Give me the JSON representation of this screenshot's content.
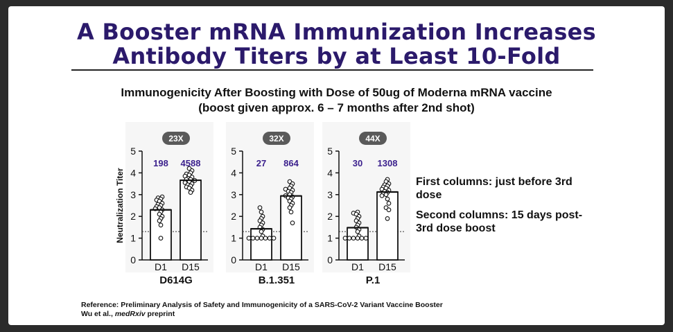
{
  "slide": {
    "title_line1": "A Booster mRNA Immunization Increases",
    "title_line2": "Antibody Titers by at Least 10-Fold",
    "subtitle_line1": "Immunogenicity After Boosting with Dose of 50ug of Moderna mRNA vaccine",
    "subtitle_line2": "(boost given approx. 6 – 7 months after 2nd shot)",
    "notes": [
      "First columns: just before 3rd dose",
      "Second columns: 15 days post-3rd dose boost"
    ],
    "reference_line1": "Reference: Preliminary Analysis of Safety and Immunogenicity of a SARS-CoV-2 Variant Vaccine Booster",
    "reference_line2_prefix": "Wu et al., ",
    "reference_line2_journal": "medRxiv",
    "reference_line2_suffix": " preprint"
  },
  "colors": {
    "title": "#2b1a6b",
    "data_label": "#3a1f8c",
    "badge": "#5a5a5a",
    "bar": "#ffffff",
    "point_fill": "#ffffff"
  },
  "chart_data": [
    {
      "type": "bar",
      "variant": "D614G",
      "fold_badge": "23X",
      "ylabel": "Neutralization Titer",
      "ylim": [
        0,
        5
      ],
      "yticks": [
        "0",
        "1",
        "2",
        "3",
        "4",
        "5"
      ],
      "reference_line": 1.3,
      "categories": [
        "D1",
        "D15"
      ],
      "values": [
        2.3,
        3.66
      ],
      "data_labels": [
        "198",
        "4588"
      ],
      "points": [
        [
          2.9,
          2.85,
          2.8,
          2.75,
          2.7,
          2.6,
          2.55,
          2.5,
          2.45,
          2.4,
          2.35,
          2.3,
          2.2,
          2.1,
          2.0,
          1.9,
          1.8,
          1.6,
          1.0
        ],
        [
          4.2,
          4.1,
          4.0,
          3.95,
          3.9,
          3.85,
          3.8,
          3.75,
          3.7,
          3.7,
          3.65,
          3.6,
          3.55,
          3.5,
          3.45,
          3.4,
          3.35,
          3.3,
          3.2,
          3.1
        ]
      ]
    },
    {
      "type": "bar",
      "variant": "B.1.351",
      "fold_badge": "32X",
      "ylim": [
        0,
        5
      ],
      "yticks": [
        "0",
        "1",
        "2",
        "3",
        "4",
        "5"
      ],
      "reference_line": 1.3,
      "categories": [
        "D1",
        "D15"
      ],
      "values": [
        1.43,
        2.94
      ],
      "data_labels": [
        "27",
        "864"
      ],
      "points": [
        [
          2.4,
          2.2,
          2.0,
          1.9,
          1.8,
          1.7,
          1.6,
          1.5,
          1.4,
          1.3,
          1.1,
          1.0,
          1.0,
          1.0,
          1.0,
          1.0,
          1.0,
          1.0
        ],
        [
          3.6,
          3.5,
          3.4,
          3.3,
          3.25,
          3.2,
          3.15,
          3.1,
          3.0,
          2.95,
          2.9,
          2.85,
          2.8,
          2.7,
          2.6,
          2.5,
          2.4,
          2.2,
          1.7
        ]
      ]
    },
    {
      "type": "bar",
      "variant": "P.1",
      "fold_badge": "44X",
      "ylim": [
        0,
        5
      ],
      "yticks": [
        "0",
        "1",
        "2",
        "3",
        "4",
        "5"
      ],
      "reference_line": 1.3,
      "categories": [
        "D1",
        "D15"
      ],
      "values": [
        1.48,
        3.12
      ],
      "data_labels": [
        "30",
        "1308"
      ],
      "points": [
        [
          2.2,
          2.15,
          2.1,
          2.0,
          1.9,
          1.8,
          1.7,
          1.6,
          1.5,
          1.4,
          1.3,
          1.1,
          1.0,
          1.0,
          1.0,
          1.0,
          1.0,
          1.0
        ],
        [
          3.7,
          3.6,
          3.5,
          3.45,
          3.4,
          3.35,
          3.3,
          3.25,
          3.2,
          3.15,
          3.1,
          3.05,
          3.0,
          2.95,
          2.8,
          2.6,
          2.4,
          2.3,
          1.9
        ]
      ]
    }
  ]
}
